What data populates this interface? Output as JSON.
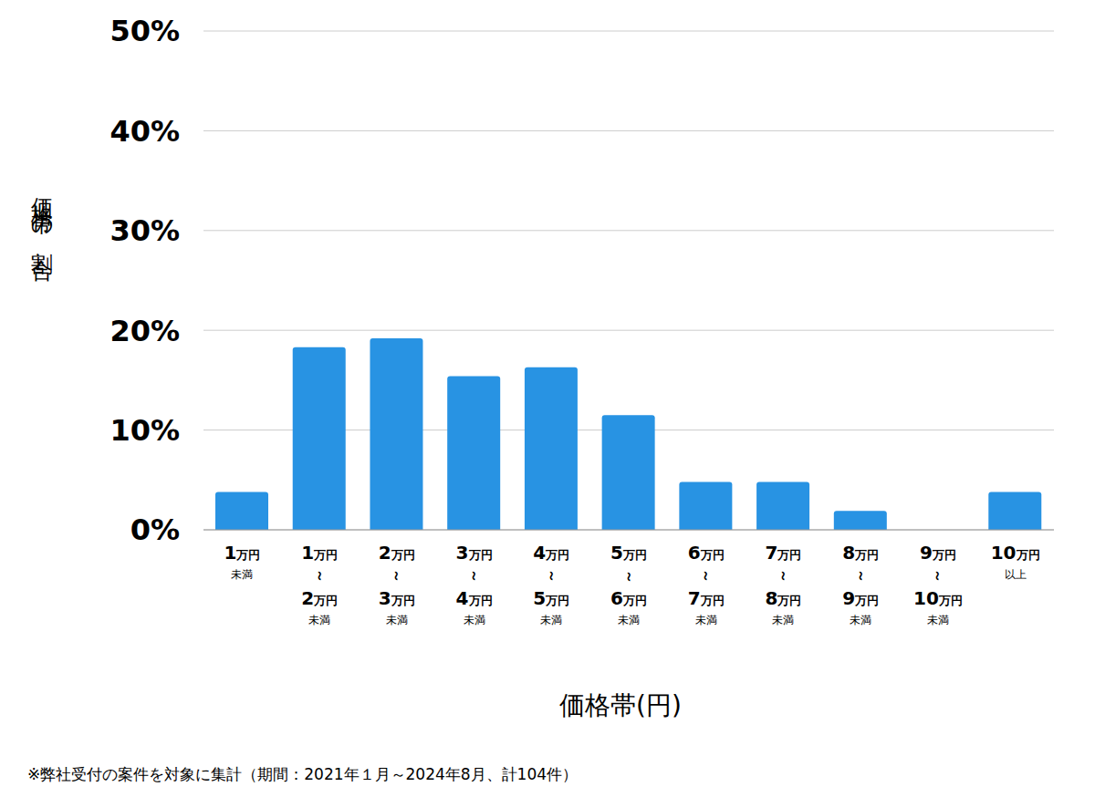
{
  "chart_data": {
    "type": "bar",
    "categories": [
      "1万円 未満",
      "1万円 ～ 2万円 未満",
      "2万円 ～ 3万円 未満",
      "3万円 ～ 4万円 未満",
      "4万円 ～ 5万円 未満",
      "5万円 ～ 6万円 未満",
      "6万円 ～ 7万円 未満",
      "7万円 ～ 8万円 未満",
      "8万円 ～ 9万円 未満",
      "9万円 ～ 10万円 未満",
      "10万円 以上"
    ],
    "values": [
      3.8,
      18.3,
      19.2,
      15.4,
      16.3,
      11.5,
      4.8,
      4.8,
      1.9,
      0,
      3.8
    ],
    "color": "#2893e3",
    "ylim": [
      0,
      50
    ],
    "yticks": [
      {
        "value": 0,
        "label": "0%"
      },
      {
        "value": 10,
        "label": "10%"
      },
      {
        "value": 20,
        "label": "20%"
      },
      {
        "value": 30,
        "label": "30%"
      },
      {
        "value": 40,
        "label": "40%"
      },
      {
        "value": 50,
        "label": "50%"
      }
    ],
    "grid": true,
    "y_label": "価格帯の割合",
    "x_label": "価格帯(円)",
    "note": "※弊社受付の案件を対象に集計（期間：2021年１月～2024年8月、計104件）"
  }
}
